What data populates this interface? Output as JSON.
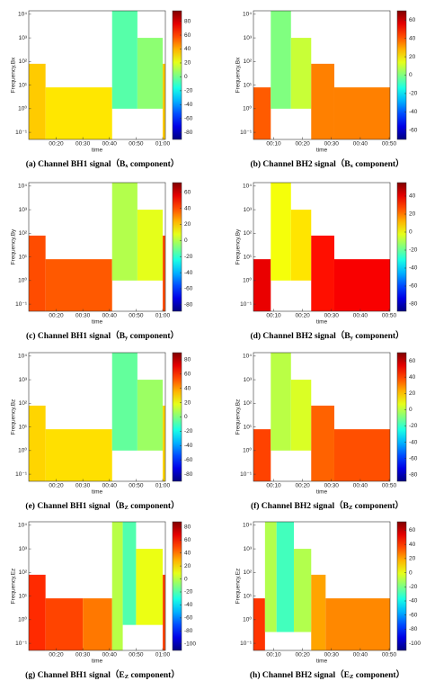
{
  "chart_data": [
    {
      "type": "heatmap",
      "title": [
        "(a) Channel BH1 signal（B",
        "x",
        " component）"
      ],
      "xlabel": "time",
      "ylabel": "Frequency,Bx",
      "colormap": "jet",
      "log_y": true,
      "xlim": [
        9.7,
        61
      ],
      "xticks": [
        {
          "value": 20,
          "label": "00:20"
        },
        {
          "value": 30,
          "label": "00:30"
        },
        {
          "value": 40,
          "label": "00:40"
        },
        {
          "value": 50,
          "label": "00:50"
        },
        {
          "value": 60,
          "label": "01:00"
        }
      ],
      "ylim": [
        0.05,
        14000
      ],
      "yticks": [
        {
          "value": 0.1,
          "label": "10⁻¹"
        },
        {
          "value": 1,
          "label": "10⁰"
        },
        {
          "value": 10,
          "label": "10¹"
        },
        {
          "value": 100,
          "label": "10²"
        },
        {
          "value": 1000,
          "label": "10³"
        },
        {
          "value": 10000,
          "label": "10⁴"
        }
      ],
      "clim": [
        -90,
        95
      ],
      "cticks": [
        -80,
        -60,
        -40,
        -20,
        0,
        20,
        40,
        60,
        80
      ],
      "blocks": [
        {
          "x": [
            9.7,
            16
          ],
          "y": [
            0.05,
            80
          ],
          "value": 35
        },
        {
          "x": [
            16,
            41
          ],
          "y": [
            0.05,
            8
          ],
          "value": 30
        },
        {
          "x": [
            41,
            50.5
          ],
          "y": [
            1,
            14000
          ],
          "value": -5
        },
        {
          "x": [
            50.5,
            60
          ],
          "y": [
            1,
            1000
          ],
          "value": 5
        },
        {
          "x": [
            60,
            61
          ],
          "y": [
            0.05,
            80
          ],
          "value": 35
        }
      ]
    },
    {
      "type": "heatmap",
      "title": [
        "(b) Channel BH2 signal（B",
        "x",
        " component）"
      ],
      "xlabel": "time",
      "ylabel": "Frequency,Bx",
      "colormap": "jet",
      "log_y": true,
      "xlim": [
        3,
        50.3
      ],
      "xticks": [
        {
          "value": 10,
          "label": "00:10"
        },
        {
          "value": 20,
          "label": "00:20"
        },
        {
          "value": 30,
          "label": "00:30"
        },
        {
          "value": 40,
          "label": "00:40"
        },
        {
          "value": 50,
          "label": "00:50"
        }
      ],
      "ylim": [
        0.05,
        14000
      ],
      "yticks": [
        {
          "value": 0.1,
          "label": "10⁻¹"
        },
        {
          "value": 1,
          "label": "10⁰"
        },
        {
          "value": 10,
          "label": "10¹"
        },
        {
          "value": 100,
          "label": "10²"
        },
        {
          "value": 1000,
          "label": "10³"
        },
        {
          "value": 10000,
          "label": "10⁴"
        }
      ],
      "clim": [
        -70,
        70
      ],
      "cticks": [
        -60,
        -40,
        -20,
        0,
        20,
        40,
        60
      ],
      "blocks": [
        {
          "x": [
            3,
            9
          ],
          "y": [
            0.05,
            8
          ],
          "value": 40
        },
        {
          "x": [
            9,
            16
          ],
          "y": [
            1,
            14000
          ],
          "value": 0
        },
        {
          "x": [
            16,
            23
          ],
          "y": [
            1,
            1000
          ],
          "value": 10
        },
        {
          "x": [
            23,
            31
          ],
          "y": [
            0.05,
            80
          ],
          "value": 35
        },
        {
          "x": [
            31,
            50.3
          ],
          "y": [
            0.05,
            8
          ],
          "value": 35
        }
      ]
    },
    {
      "type": "heatmap",
      "title": [
        "(c) Channel BH1 signal（B",
        "y",
        " component）"
      ],
      "xlabel": "time",
      "ylabel": "Frequency,By",
      "colormap": "jet",
      "log_y": true,
      "xlim": [
        9.7,
        61
      ],
      "xticks": [
        {
          "value": 20,
          "label": "00:20"
        },
        {
          "value": 30,
          "label": "00:30"
        },
        {
          "value": 40,
          "label": "00:40"
        },
        {
          "value": 50,
          "label": "00:50"
        },
        {
          "value": 60,
          "label": "01:00"
        }
      ],
      "ylim": [
        0.05,
        14000
      ],
      "yticks": [
        {
          "value": 0.1,
          "label": "10⁻¹"
        },
        {
          "value": 1,
          "label": "10⁰"
        },
        {
          "value": 10,
          "label": "10¹"
        },
        {
          "value": 100,
          "label": "10²"
        },
        {
          "value": 1000,
          "label": "10³"
        },
        {
          "value": 10000,
          "label": "10⁴"
        }
      ],
      "clim": [
        -88,
        72
      ],
      "cticks": [
        -80,
        -60,
        -40,
        -20,
        0,
        20,
        40,
        60
      ],
      "blocks": [
        {
          "x": [
            9.7,
            16
          ],
          "y": [
            0.05,
            80
          ],
          "value": 40
        },
        {
          "x": [
            16,
            41
          ],
          "y": [
            0.05,
            8
          ],
          "value": 38
        },
        {
          "x": [
            41,
            50.5
          ],
          "y": [
            1,
            14000
          ],
          "value": 0
        },
        {
          "x": [
            50.5,
            60
          ],
          "y": [
            1,
            1000
          ],
          "value": 8
        },
        {
          "x": [
            60,
            61
          ],
          "y": [
            0.05,
            80
          ],
          "value": 40
        }
      ]
    },
    {
      "type": "heatmap",
      "title": [
        "(d) Channel BH2 signal（B",
        "y",
        " component）"
      ],
      "xlabel": "time",
      "ylabel": "Frequency,By",
      "colormap": "jet",
      "log_y": true,
      "xlim": [
        3,
        50.3
      ],
      "xticks": [
        {
          "value": 10,
          "label": "00:10"
        },
        {
          "value": 20,
          "label": "00:20"
        },
        {
          "value": 30,
          "label": "00:30"
        },
        {
          "value": 40,
          "label": "00:40"
        },
        {
          "value": 50,
          "label": "00:50"
        }
      ],
      "ylim": [
        0.05,
        14000
      ],
      "yticks": [
        {
          "value": 0.1,
          "label": "10⁻¹"
        },
        {
          "value": 1,
          "label": "10⁰"
        },
        {
          "value": 10,
          "label": "10¹"
        },
        {
          "value": 100,
          "label": "10²"
        },
        {
          "value": 1000,
          "label": "10³"
        },
        {
          "value": 10000,
          "label": "10⁴"
        }
      ],
      "clim": [
        -88,
        55
      ],
      "cticks": [
        -80,
        -60,
        -40,
        -20,
        0,
        20,
        40
      ],
      "blocks": [
        {
          "x": [
            3,
            9
          ],
          "y": [
            0.05,
            8
          ],
          "value": 40
        },
        {
          "x": [
            9,
            16
          ],
          "y": [
            1,
            14000
          ],
          "value": 0
        },
        {
          "x": [
            16,
            23
          ],
          "y": [
            1,
            1000
          ],
          "value": 5
        },
        {
          "x": [
            23,
            31
          ],
          "y": [
            0.05,
            80
          ],
          "value": 35
        },
        {
          "x": [
            31,
            50.3
          ],
          "y": [
            0.05,
            8
          ],
          "value": 38
        }
      ]
    },
    {
      "type": "heatmap",
      "title": [
        "(e) Channel BH1 signal（B",
        "Z",
        " component）"
      ],
      "xlabel": "time",
      "ylabel": "Frequency,Bz",
      "colormap": "jet",
      "log_y": true,
      "xlim": [
        9.7,
        61
      ],
      "xticks": [
        {
          "value": 20,
          "label": "00:20"
        },
        {
          "value": 30,
          "label": "00:30"
        },
        {
          "value": 40,
          "label": "00:40"
        },
        {
          "value": 50,
          "label": "00:50"
        },
        {
          "value": 60,
          "label": "01:00"
        }
      ],
      "ylim": [
        0.05,
        14000
      ],
      "yticks": [
        {
          "value": 0.1,
          "label": "10⁻¹"
        },
        {
          "value": 1,
          "label": "10⁰"
        },
        {
          "value": 10,
          "label": "10¹"
        },
        {
          "value": 100,
          "label": "10²"
        },
        {
          "value": 1000,
          "label": "10³"
        },
        {
          "value": 10000,
          "label": "10⁴"
        }
      ],
      "clim": [
        -90,
        90
      ],
      "cticks": [
        -80,
        -60,
        -40,
        -20,
        0,
        20,
        40,
        60,
        80
      ],
      "blocks": [
        {
          "x": [
            9.7,
            16
          ],
          "y": [
            0.05,
            80
          ],
          "value": 30
        },
        {
          "x": [
            16,
            41
          ],
          "y": [
            0.05,
            8
          ],
          "value": 28
        },
        {
          "x": [
            41,
            50.5
          ],
          "y": [
            1,
            14000
          ],
          "value": -5
        },
        {
          "x": [
            50.5,
            60
          ],
          "y": [
            1,
            1000
          ],
          "value": 5
        },
        {
          "x": [
            60,
            61
          ],
          "y": [
            0.05,
            80
          ],
          "value": 30
        }
      ]
    },
    {
      "type": "heatmap",
      "title": [
        "(f) Channel BH2 signal（B",
        "Z",
        " component）"
      ],
      "xlabel": "time",
      "ylabel": "Frequency,Bz",
      "colormap": "jet",
      "log_y": true,
      "xlim": [
        3,
        50.3
      ],
      "xticks": [
        {
          "value": 10,
          "label": "00:10"
        },
        {
          "value": 20,
          "label": "00:20"
        },
        {
          "value": 30,
          "label": "00:30"
        },
        {
          "value": 40,
          "label": "00:40"
        },
        {
          "value": 50,
          "label": "00:50"
        }
      ],
      "ylim": [
        0.05,
        14000
      ],
      "yticks": [
        {
          "value": 0.1,
          "label": "10⁻¹"
        },
        {
          "value": 1,
          "label": "10⁰"
        },
        {
          "value": 10,
          "label": "10¹"
        },
        {
          "value": 100,
          "label": "10²"
        },
        {
          "value": 1000,
          "label": "10³"
        },
        {
          "value": 10000,
          "label": "10⁴"
        }
      ],
      "clim": [
        -88,
        70
      ],
      "cticks": [
        -80,
        -60,
        -40,
        -20,
        0,
        20,
        40,
        60
      ],
      "blocks": [
        {
          "x": [
            3,
            9
          ],
          "y": [
            0.05,
            8
          ],
          "value": 40
        },
        {
          "x": [
            9,
            16
          ],
          "y": [
            1,
            14000
          ],
          "value": 0
        },
        {
          "x": [
            16,
            23
          ],
          "y": [
            1,
            1000
          ],
          "value": 5
        },
        {
          "x": [
            23,
            31
          ],
          "y": [
            0.05,
            80
          ],
          "value": 35
        },
        {
          "x": [
            31,
            50.3
          ],
          "y": [
            0.05,
            8
          ],
          "value": 38
        }
      ]
    },
    {
      "type": "heatmap",
      "title": [
        "(g) Channel BH1 signal（E",
        "Z",
        " component）"
      ],
      "xlabel": "time",
      "ylabel": "Frequency,Ez",
      "colormap": "jet",
      "log_y": true,
      "xlim": [
        9.7,
        61
      ],
      "xticks": [
        {
          "value": 20,
          "label": "00:20"
        },
        {
          "value": 30,
          "label": "00:30"
        },
        {
          "value": 40,
          "label": "00:40"
        },
        {
          "value": 50,
          "label": "00:50"
        },
        {
          "value": 60,
          "label": "01:00"
        }
      ],
      "ylim": [
        0.05,
        14000
      ],
      "yticks": [
        {
          "value": 0.1,
          "label": "10⁻¹"
        },
        {
          "value": 1,
          "label": "10⁰"
        },
        {
          "value": 10,
          "label": "10¹"
        },
        {
          "value": 100,
          "label": "10²"
        },
        {
          "value": 1000,
          "label": "10³"
        },
        {
          "value": 10000,
          "label": "10⁴"
        }
      ],
      "clim": [
        -110,
        88
      ],
      "cticks": [
        -100,
        -80,
        -60,
        -40,
        -20,
        0,
        20,
        40,
        60,
        80
      ],
      "blocks": [
        {
          "x": [
            9.7,
            16
          ],
          "y": [
            0.05,
            80
          ],
          "value": 55
        },
        {
          "x": [
            16,
            30
          ],
          "y": [
            0.05,
            8
          ],
          "value": 50
        },
        {
          "x": [
            30,
            41
          ],
          "y": [
            0.05,
            8
          ],
          "value": 40
        },
        {
          "x": [
            41,
            45
          ],
          "y": [
            0.05,
            14000
          ],
          "value": 0
        },
        {
          "x": [
            45,
            50
          ],
          "y": [
            0.6,
            14000
          ],
          "value": -20
        },
        {
          "x": [
            50,
            60
          ],
          "y": [
            0.6,
            1000
          ],
          "value": 10
        },
        {
          "x": [
            60,
            61
          ],
          "y": [
            0.05,
            80
          ],
          "value": 50
        }
      ]
    },
    {
      "type": "heatmap",
      "title": [
        "(h) Channel BH2 signal（E",
        "Z",
        " component）"
      ],
      "xlabel": "time",
      "ylabel": "Frequency,Ez",
      "colormap": "jet",
      "log_y": true,
      "xlim": [
        3,
        50.3
      ],
      "xticks": [
        {
          "value": 10,
          "label": "00:10"
        },
        {
          "value": 20,
          "label": "00:20"
        },
        {
          "value": 30,
          "label": "00:30"
        },
        {
          "value": 40,
          "label": "00:40"
        },
        {
          "value": 50,
          "label": "00:50"
        }
      ],
      "ylim": [
        0.05,
        14000
      ],
      "yticks": [
        {
          "value": 0.1,
          "label": "10⁻¹"
        },
        {
          "value": 1,
          "label": "10⁰"
        },
        {
          "value": 10,
          "label": "10¹"
        },
        {
          "value": 100,
          "label": "10²"
        },
        {
          "value": 1000,
          "label": "10³"
        },
        {
          "value": 10000,
          "label": "10⁴"
        }
      ],
      "clim": [
        -110,
        72
      ],
      "cticks": [
        -100,
        -80,
        -60,
        -40,
        -20,
        0,
        20,
        40,
        60
      ],
      "blocks": [
        {
          "x": [
            3,
            7
          ],
          "y": [
            0.05,
            8
          ],
          "value": 40
        },
        {
          "x": [
            7,
            11
          ],
          "y": [
            0.3,
            14000
          ],
          "value": -10
        },
        {
          "x": [
            11,
            17
          ],
          "y": [
            0.3,
            14000
          ],
          "value": -30
        },
        {
          "x": [
            17,
            23
          ],
          "y": [
            0.3,
            1000
          ],
          "value": -10
        },
        {
          "x": [
            23,
            28
          ],
          "y": [
            0.05,
            80
          ],
          "value": 20
        },
        {
          "x": [
            28,
            50.3
          ],
          "y": [
            0.05,
            8
          ],
          "value": 25
        }
      ]
    }
  ]
}
